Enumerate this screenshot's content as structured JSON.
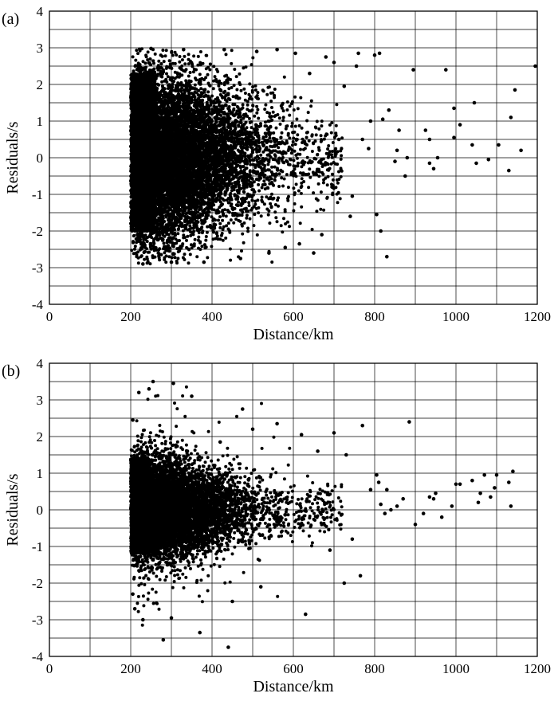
{
  "chart_data": [
    {
      "type": "scatter",
      "panel_label": "(a)",
      "xlabel": "Distance/km",
      "ylabel": "Residuals/s",
      "xlim": [
        0,
        1200
      ],
      "ylim": [
        -4,
        4
      ],
      "x_ticks": [
        "0",
        "200",
        "400",
        "600",
        "800",
        "1000",
        "1200"
      ],
      "y_ticks": [
        "-4",
        "-3",
        "-2",
        "-1",
        "0",
        "1",
        "2",
        "3",
        "4"
      ],
      "grid": true,
      "marker_color": "#000000",
      "point_count": 20000,
      "distribution": "dense cloud starting at 200 km, spread roughly ±3 s near 200–300 km, narrowing with distance; sparse points out to 1200 km",
      "points": [
        [
          1195,
          2.5
        ],
        [
          1145,
          1.85
        ],
        [
          1135,
          1.1
        ],
        [
          1130,
          -0.35
        ],
        [
          1160,
          0.2
        ],
        [
          1105,
          0.35
        ],
        [
          1080,
          -0.05
        ],
        [
          1045,
          1.5
        ],
        [
          1040,
          0.35
        ],
        [
          1050,
          -0.15
        ],
        [
          1010,
          0.9
        ],
        [
          995,
          1.35
        ],
        [
          995,
          0.55
        ],
        [
          975,
          2.4
        ],
        [
          955,
          0.0
        ],
        [
          945,
          -0.3
        ],
        [
          935,
          0.5
        ],
        [
          925,
          0.75
        ],
        [
          935,
          -0.15
        ],
        [
          895,
          2.4
        ],
        [
          880,
          0.0
        ],
        [
          875,
          -0.5
        ],
        [
          860,
          0.75
        ],
        [
          855,
          0.2
        ],
        [
          850,
          -0.1
        ],
        [
          835,
          1.3
        ],
        [
          830,
          -2.7
        ],
        [
          820,
          1.05
        ],
        [
          812,
          2.85
        ],
        [
          800,
          2.8
        ],
        [
          815,
          -2.0
        ],
        [
          805,
          -1.55
        ],
        [
          790,
          1.0
        ],
        [
          785,
          0.25
        ],
        [
          770,
          0.5
        ],
        [
          760,
          2.85
        ],
        [
          755,
          2.5
        ],
        [
          745,
          -1.05
        ],
        [
          740,
          -1.6
        ],
        [
          725,
          1.95
        ],
        [
          712,
          0.5
        ],
        [
          700,
          2.6
        ],
        [
          695,
          -0.8
        ],
        [
          680,
          2.75
        ],
        [
          670,
          -2.1
        ],
        [
          650,
          -2.6
        ],
        [
          640,
          2.3
        ],
        [
          615,
          -2.35
        ],
        [
          605,
          2.85
        ],
        [
          580,
          -2.45
        ],
        [
          560,
          2.95
        ],
        [
          540,
          -2.6
        ],
        [
          510,
          2.9
        ],
        [
          470,
          -2.75
        ],
        [
          430,
          2.95
        ],
        [
          380,
          -2.85
        ],
        [
          330,
          2.95
        ],
        [
          300,
          -2.85
        ],
        [
          250,
          2.98
        ],
        [
          230,
          -2.9
        ]
      ]
    },
    {
      "type": "scatter",
      "panel_label": "(b)",
      "xlabel": "Distance/km",
      "ylabel": "Residuals/s",
      "xlim": [
        0,
        1200
      ],
      "ylim": [
        -4,
        4
      ],
      "x_ticks": [
        "0",
        "200",
        "400",
        "600",
        "800",
        "1000",
        "1200"
      ],
      "y_ticks": [
        "-4",
        "-3",
        "-2",
        "-1",
        "0",
        "1",
        "2",
        "3",
        "4"
      ],
      "grid": true,
      "marker_color": "#000000",
      "point_count": 14000,
      "distribution": "dense cloud starting at 200 km, residuals mostly within ±1.5 s and tightening toward 0 with distance; sparse outliers to ±3.7 s",
      "points": [
        [
          1140,
          1.05
        ],
        [
          1130,
          0.75
        ],
        [
          1135,
          0.1
        ],
        [
          1100,
          0.95
        ],
        [
          1095,
          0.6
        ],
        [
          1085,
          0.35
        ],
        [
          1070,
          0.95
        ],
        [
          1060,
          0.45
        ],
        [
          1055,
          0.2
        ],
        [
          1040,
          0.8
        ],
        [
          1000,
          0.7
        ],
        [
          1010,
          0.7
        ],
        [
          990,
          0.1
        ],
        [
          965,
          -0.2
        ],
        [
          950,
          0.45
        ],
        [
          945,
          0.3
        ],
        [
          935,
          0.35
        ],
        [
          920,
          -0.1
        ],
        [
          900,
          -0.4
        ],
        [
          885,
          2.4
        ],
        [
          870,
          0.3
        ],
        [
          855,
          0.1
        ],
        [
          840,
          0.0
        ],
        [
          830,
          0.55
        ],
        [
          825,
          -0.1
        ],
        [
          815,
          0.15
        ],
        [
          810,
          0.75
        ],
        [
          805,
          0.95
        ],
        [
          790,
          0.55
        ],
        [
          770,
          2.3
        ],
        [
          765,
          -1.8
        ],
        [
          745,
          -0.8
        ],
        [
          730,
          1.5
        ],
        [
          725,
          -2.0
        ],
        [
          700,
          2.1
        ],
        [
          690,
          -1.1
        ],
        [
          660,
          1.6
        ],
        [
          630,
          -2.85
        ],
        [
          620,
          2.05
        ],
        [
          560,
          2.35
        ],
        [
          520,
          -2.1
        ],
        [
          500,
          2.2
        ],
        [
          475,
          2.75
        ],
        [
          450,
          -2.5
        ],
        [
          440,
          -3.75
        ],
        [
          420,
          1.85
        ],
        [
          370,
          -3.35
        ],
        [
          350,
          3.1
        ],
        [
          305,
          3.45
        ],
        [
          300,
          -2.95
        ],
        [
          280,
          -3.55
        ],
        [
          255,
          3.5
        ],
        [
          245,
          3.3
        ],
        [
          230,
          -3.0
        ],
        [
          220,
          3.2
        ],
        [
          210,
          -2.7
        ],
        [
          205,
          2.45
        ],
        [
          205,
          -2.3
        ]
      ]
    }
  ]
}
